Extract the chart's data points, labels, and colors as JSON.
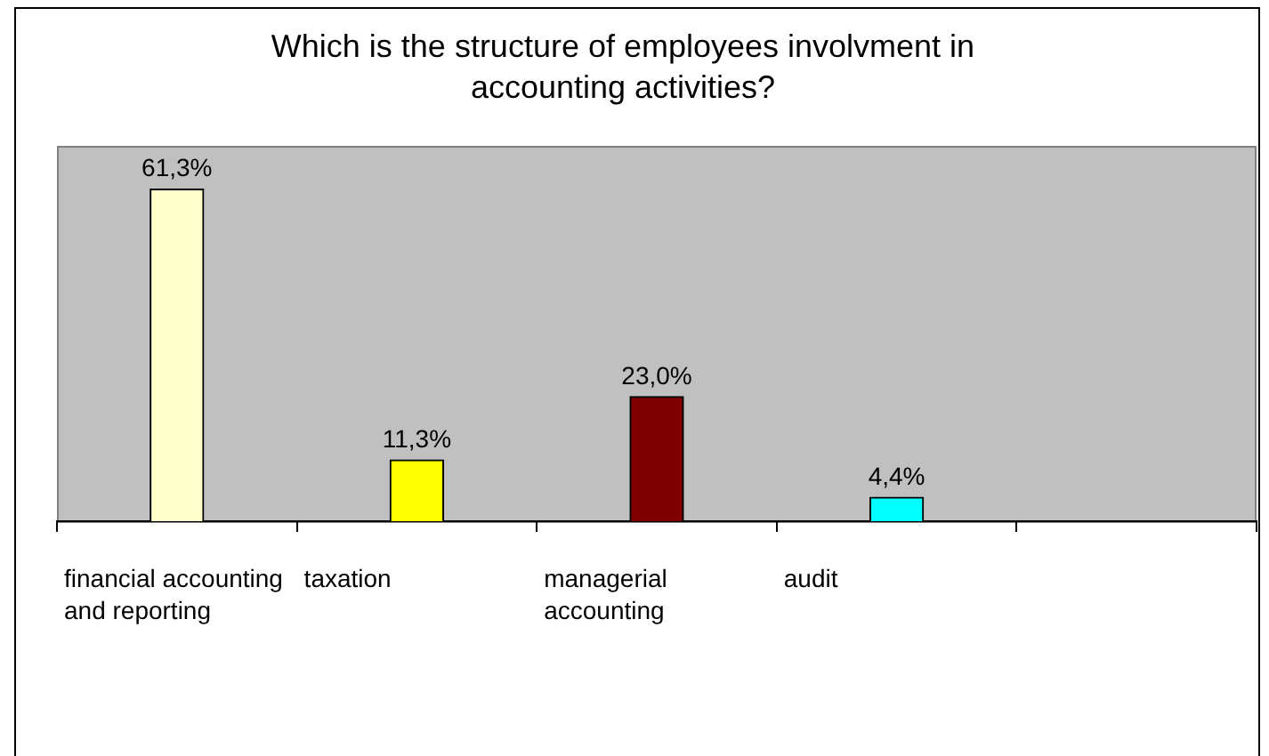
{
  "chart_data": {
    "type": "bar",
    "title": "Which is the structure of employees involvment in accounting activities?",
    "categories": [
      "financial accounting and reporting",
      "taxation",
      "managerial accounting",
      "audit",
      null
    ],
    "values": [
      61.3,
      11.3,
      23.0,
      4.4,
      null
    ],
    "colors": [
      "#ffffcc",
      "#ffff00",
      "#800000",
      "#00ffff",
      "#c0c0c0"
    ],
    "value_labels": [
      "61,3%",
      "11,3%",
      "23,0%",
      "4,4%",
      null
    ],
    "grid": false,
    "legend": false
  }
}
